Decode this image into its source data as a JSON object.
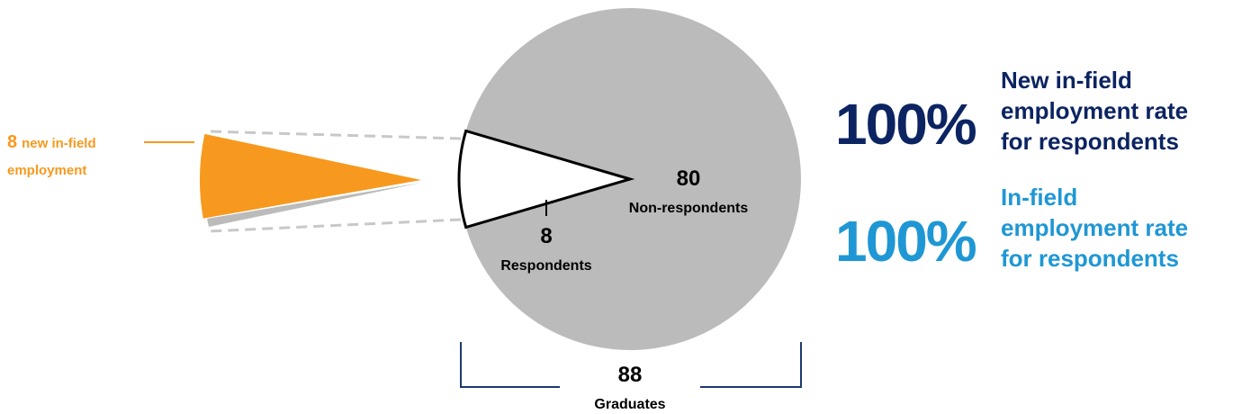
{
  "chart_data": {
    "type": "pie",
    "categories": [
      "Non-respondents",
      "Respondents"
    ],
    "values": [
      80,
      8
    ],
    "colors": [
      "#bbbbbb",
      "#ffffff"
    ],
    "total": 88,
    "total_label": "Graduates",
    "breakout": {
      "value": 8,
      "lines": [
        "new in-field",
        "employment"
      ],
      "color": "#f7991e"
    },
    "stats": [
      {
        "value": 100,
        "value_label": "100%",
        "lines": [
          "New in-field",
          "employment rate",
          "for respondents"
        ],
        "color": "#0c2461"
      },
      {
        "value": 100,
        "value_label": "100%",
        "lines": [
          "In-field",
          "employment rate",
          "for respondents"
        ],
        "color": "#1f97d4"
      }
    ]
  }
}
